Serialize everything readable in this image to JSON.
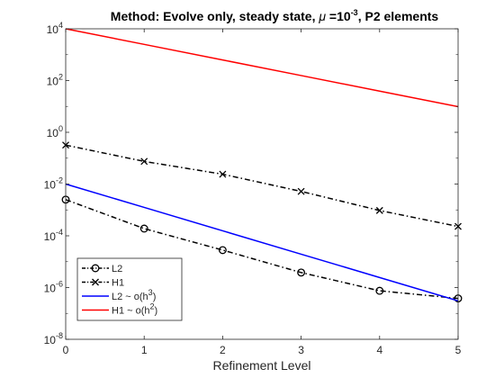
{
  "chart_data": {
    "type": "line",
    "title": "Method: Evolve only, steady state, μ =10^-3, P2 elements",
    "title_parts": {
      "prefix": "Method: Evolve only, steady state, ",
      "mu": "μ",
      "equals": " =10",
      "exponent": "-3",
      "suffix": ", P2 elements"
    },
    "xlabel": "Refinement Level",
    "ylabel": "",
    "x": [
      0,
      1,
      2,
      3,
      4,
      5
    ],
    "xlim": [
      0,
      5
    ],
    "ylim": [
      1e-08,
      10000.0
    ],
    "yscale": "log",
    "grid": false,
    "x_tick_labels": [
      "0",
      "1",
      "2",
      "3",
      "4",
      "5"
    ],
    "y_ticks": [
      {
        "base": "10",
        "exp": "-8",
        "value": 1e-08
      },
      {
        "base": "10",
        "exp": "-6",
        "value": 1e-06
      },
      {
        "base": "10",
        "exp": "-4",
        "value": 0.0001
      },
      {
        "base": "10",
        "exp": "-2",
        "value": 0.01
      },
      {
        "base": "10",
        "exp": "0",
        "value": 1
      },
      {
        "base": "10",
        "exp": "2",
        "value": 100
      },
      {
        "base": "10",
        "exp": "4",
        "value": 10000
      }
    ],
    "legend_position": "bottom-left",
    "series": [
      {
        "name": "L2",
        "values": [
          0.0025,
          0.00019,
          2.8e-05,
          3.8e-06,
          7.5e-07,
          3.8e-07
        ],
        "color": "#000000",
        "line_style": "dash-dot",
        "marker": "circle"
      },
      {
        "name": "H1",
        "values": [
          0.32,
          0.075,
          0.024,
          0.0052,
          0.00095,
          0.00023
        ],
        "color": "#000000",
        "line_style": "dash-dot",
        "marker": "x"
      },
      {
        "name": "L2 ~ o(h^3)",
        "name_parts": {
          "prefix": "L2 ~ o(h",
          "exp": "3",
          "suffix": ")"
        },
        "values": [
          0.01,
          0.00125,
          0.000156,
          1.95e-05,
          2.44e-06,
          3.05e-07
        ],
        "color": "#0000ff",
        "line_style": "solid",
        "marker": "none"
      },
      {
        "name": "H1 ~ o(h^2)",
        "name_parts": {
          "prefix": "H1 ~ o(h",
          "exp": "2",
          "suffix": ")"
        },
        "values": [
          10000,
          2500,
          625,
          156,
          39,
          9.8
        ],
        "color": "#ff0000",
        "line_style": "solid",
        "marker": "none"
      }
    ]
  }
}
